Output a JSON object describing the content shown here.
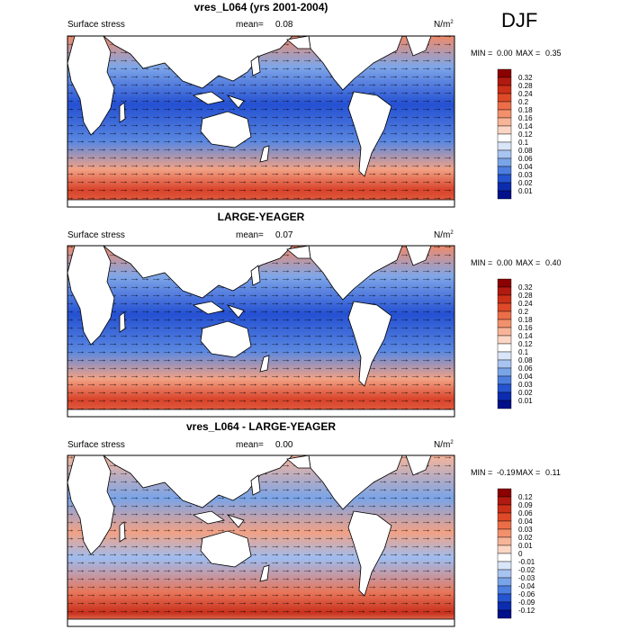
{
  "season": "DJF",
  "colors": {
    "ocean_gradient": [
      "#0b1a9a",
      "#2356d6",
      "#6f9ee6",
      "#ffffff",
      "#ee9a7c",
      "#d8432a",
      "#a01414"
    ],
    "land": "#ffffff",
    "coast": "#000000"
  },
  "chart_data": [
    {
      "type": "heatmap",
      "title": "vres_L064 (yrs 2001-2004)",
      "left_label": "Surface stress",
      "mean_label": "mean=",
      "mean_value": "0.08",
      "units": "N/m",
      "units_sup": "2",
      "min_label": "MIN =",
      "min_value": "0.00",
      "max_label": "MAX =",
      "max_value": "0.35",
      "colorbar_ticks": [
        "0.32",
        "0.28",
        "0.24",
        "0.2",
        "0.18",
        "0.16",
        "0.14",
        "0.12",
        "0.1",
        "0.08",
        "0.06",
        "0.04",
        "0.03",
        "0.02",
        "0.01"
      ],
      "colorbar_colors": [
        "#8b0000",
        "#b01a10",
        "#cc3018",
        "#de4a28",
        "#ec6e48",
        "#f3906c",
        "#f8b498",
        "#fbd6c4",
        "#ffffff",
        "#d9e5f8",
        "#a8c4f0",
        "#7aa4e8",
        "#4c7ee0",
        "#2454d0",
        "#0c2cb0",
        "#00108a"
      ]
    },
    {
      "type": "heatmap",
      "title": "LARGE-YEAGER",
      "left_label": "Surface stress",
      "mean_label": "mean=",
      "mean_value": "0.07",
      "units": "N/m",
      "units_sup": "2",
      "min_label": "MIN =",
      "min_value": "0.00",
      "max_label": "MAX =",
      "max_value": "0.40",
      "colorbar_ticks": [
        "0.32",
        "0.28",
        "0.24",
        "0.2",
        "0.18",
        "0.16",
        "0.14",
        "0.12",
        "0.1",
        "0.08",
        "0.06",
        "0.04",
        "0.03",
        "0.02",
        "0.01"
      ],
      "colorbar_colors": [
        "#8b0000",
        "#b01a10",
        "#cc3018",
        "#de4a28",
        "#ec6e48",
        "#f3906c",
        "#f8b498",
        "#fbd6c4",
        "#ffffff",
        "#d9e5f8",
        "#a8c4f0",
        "#7aa4e8",
        "#4c7ee0",
        "#2454d0",
        "#0c2cb0",
        "#00108a"
      ]
    },
    {
      "type": "heatmap",
      "title": "vres_L064 - LARGE-YEAGER",
      "left_label": "Surface stress",
      "mean_label": "mean=",
      "mean_value": "0.00",
      "units": "N/m",
      "units_sup": "2",
      "min_label": "MIN =",
      "min_value": "-0.19",
      "max_label": "MAX =",
      "max_value": "0.11",
      "colorbar_ticks": [
        "0.12",
        "0.09",
        "0.06",
        "0.04",
        "0.03",
        "0.02",
        "0.01",
        "0",
        "-0.01",
        "-0.02",
        "-0.03",
        "-0.04",
        "-0.06",
        "-0.09",
        "-0.12"
      ],
      "colorbar_colors": [
        "#8b0000",
        "#b01a10",
        "#cc3018",
        "#de4a28",
        "#ec6e48",
        "#f3906c",
        "#f8b498",
        "#fbd6c4",
        "#ffffff",
        "#d9e5f8",
        "#a8c4f0",
        "#7aa4e8",
        "#4c7ee0",
        "#2454d0",
        "#0c2cb0",
        "#00108a"
      ]
    }
  ]
}
